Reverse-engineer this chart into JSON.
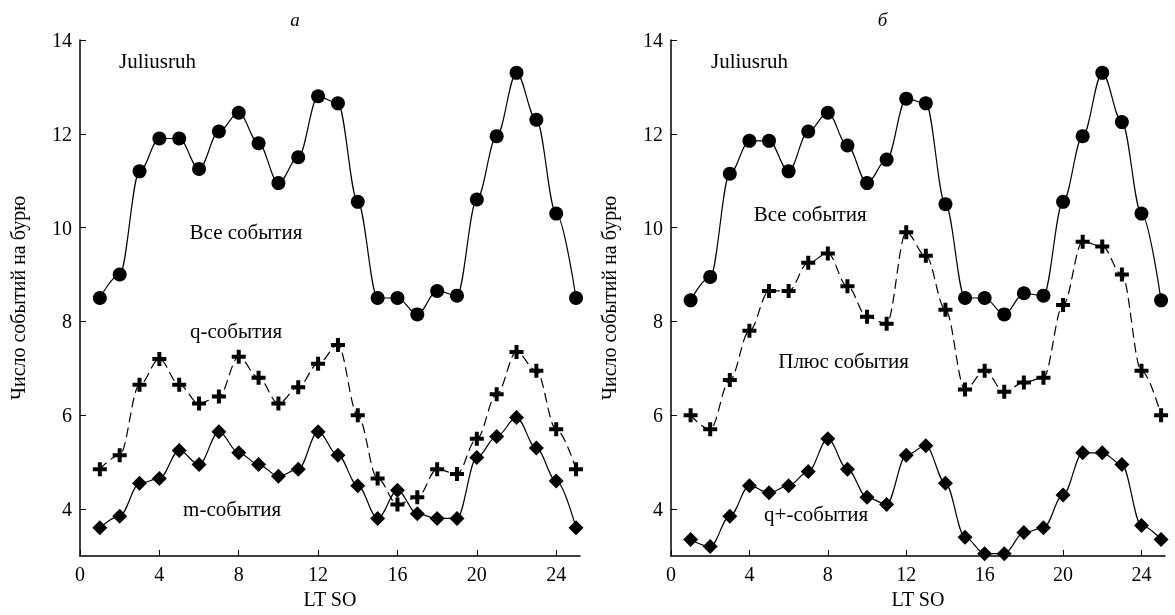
{
  "chart_data": [
    {
      "type": "line",
      "title": "а",
      "xlabel": "LT SO",
      "ylabel": "Число событий на бурю",
      "x": [
        1,
        2,
        3,
        4,
        5,
        6,
        7,
        8,
        9,
        10,
        11,
        12,
        13,
        14,
        15,
        16,
        17,
        18,
        19,
        20,
        21,
        22,
        23,
        24,
        25
      ],
      "xlim": [
        0,
        25.2
      ],
      "xticks": [
        0,
        4,
        8,
        12,
        16,
        20,
        24
      ],
      "ylim": [
        3,
        14
      ],
      "yticks": [
        4,
        6,
        8,
        10,
        12,
        14
      ],
      "grid": false,
      "annotations": [
        "Juliusruh"
      ],
      "series": [
        {
          "name": "Все события",
          "color": "#000000",
          "marker": "circle",
          "line_style": "solid",
          "values": [
            8.5,
            9.0,
            11.2,
            11.9,
            11.9,
            11.25,
            12.05,
            12.45,
            11.8,
            10.95,
            11.5,
            12.8,
            12.65,
            10.55,
            8.5,
            8.5,
            8.15,
            8.65,
            8.55,
            10.6,
            11.95,
            13.3,
            12.3,
            10.3,
            8.5
          ]
        },
        {
          "name": "q-события",
          "color": "#000000",
          "marker": "cross",
          "line_style": "dashed",
          "values": [
            4.85,
            5.15,
            6.65,
            7.2,
            6.65,
            6.25,
            6.4,
            7.25,
            6.8,
            6.25,
            6.6,
            7.1,
            7.5,
            6.0,
            4.65,
            4.1,
            4.25,
            4.85,
            4.75,
            5.5,
            6.45,
            7.35,
            6.95,
            5.7,
            4.85
          ]
        },
        {
          "name": "m-события",
          "color": "#000000",
          "marker": "diamond",
          "line_style": "solid",
          "values": [
            3.6,
            3.85,
            4.55,
            4.65,
            5.25,
            4.95,
            5.65,
            5.2,
            4.95,
            4.7,
            4.85,
            5.65,
            5.15,
            4.5,
            3.8,
            4.4,
            3.9,
            3.8,
            3.8,
            5.1,
            5.55,
            5.95,
            5.3,
            4.6,
            3.6
          ]
        }
      ]
    },
    {
      "type": "line",
      "title": "б",
      "xlabel": "LT SO",
      "ylabel": "Число событий на бурю",
      "x": [
        1,
        2,
        3,
        4,
        5,
        6,
        7,
        8,
        9,
        10,
        11,
        12,
        13,
        14,
        15,
        16,
        17,
        18,
        19,
        20,
        21,
        22,
        23,
        24,
        25
      ],
      "xlim": [
        0,
        25.2
      ],
      "xticks": [
        0,
        4,
        8,
        12,
        16,
        20,
        24
      ],
      "ylim": [
        3,
        14
      ],
      "yticks": [
        4,
        6,
        8,
        10,
        12,
        14
      ],
      "grid": false,
      "annotations": [
        "Juliusruh"
      ],
      "series": [
        {
          "name": "Все события",
          "color": "#000000",
          "marker": "circle",
          "line_style": "solid",
          "values": [
            8.45,
            8.95,
            11.15,
            11.85,
            11.85,
            11.2,
            12.05,
            12.45,
            11.75,
            10.95,
            11.45,
            12.75,
            12.65,
            10.5,
            8.5,
            8.5,
            8.15,
            8.6,
            8.55,
            10.55,
            11.95,
            13.3,
            12.25,
            10.3,
            8.45
          ]
        },
        {
          "name": "Плюс события",
          "color": "#000000",
          "marker": "cross",
          "line_style": "dashed",
          "values": [
            6.0,
            5.7,
            6.75,
            7.8,
            8.65,
            8.65,
            9.25,
            9.45,
            8.75,
            8.1,
            7.95,
            9.9,
            9.4,
            8.25,
            6.55,
            6.95,
            6.5,
            6.7,
            6.8,
            8.35,
            9.7,
            9.6,
            9.0,
            6.95,
            6.0
          ]
        },
        {
          "name": "q+-события",
          "color": "#000000",
          "marker": "diamond",
          "line_style": "solid",
          "values": [
            3.35,
            3.2,
            3.85,
            4.5,
            4.35,
            4.5,
            4.8,
            5.5,
            4.85,
            4.25,
            4.1,
            5.15,
            5.35,
            4.55,
            3.4,
            3.05,
            3.05,
            3.5,
            3.6,
            4.3,
            5.2,
            5.2,
            4.95,
            3.65,
            3.35
          ]
        }
      ]
    }
  ]
}
